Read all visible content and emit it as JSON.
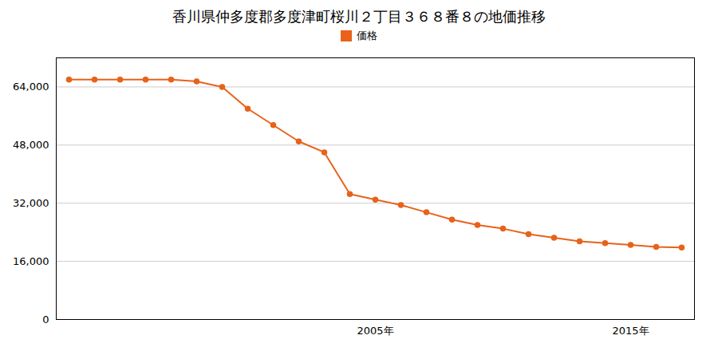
{
  "chart_data": {
    "type": "line",
    "title": "香川県仲多度郡多度津町桜川２丁目３６８番８の地価推移",
    "x": [
      1993,
      1994,
      1995,
      1996,
      1997,
      1998,
      1999,
      2000,
      2001,
      2002,
      2003,
      2004,
      2005,
      2006,
      2007,
      2008,
      2009,
      2010,
      2011,
      2012,
      2013,
      2014,
      2015,
      2016,
      2017
    ],
    "series": [
      {
        "name": "価格",
        "color": "#e8621a",
        "marker": "circle",
        "values": [
          66000,
          66000,
          66000,
          66000,
          66000,
          65500,
          64000,
          58000,
          53500,
          49000,
          46000,
          34500,
          33000,
          31500,
          29500,
          27500,
          26000,
          25000,
          23500,
          22500,
          21500,
          21000,
          20500,
          20000,
          19800
        ]
      }
    ],
    "xlim": [
      1992.5,
      2017.5
    ],
    "xticks": [
      {
        "value": 2005,
        "label": "2005年"
      },
      {
        "value": 2015,
        "label": "2015年"
      }
    ],
    "ylim": [
      0,
      72000
    ],
    "yticks": [
      0,
      {
        "value": 16000,
        "label": "16,000"
      },
      {
        "value": 32000,
        "label": "32,000"
      },
      {
        "value": 48000,
        "label": "48,000"
      },
      {
        "value": 64000,
        "label": "64,000"
      }
    ],
    "grid": "y",
    "legend": "top"
  }
}
